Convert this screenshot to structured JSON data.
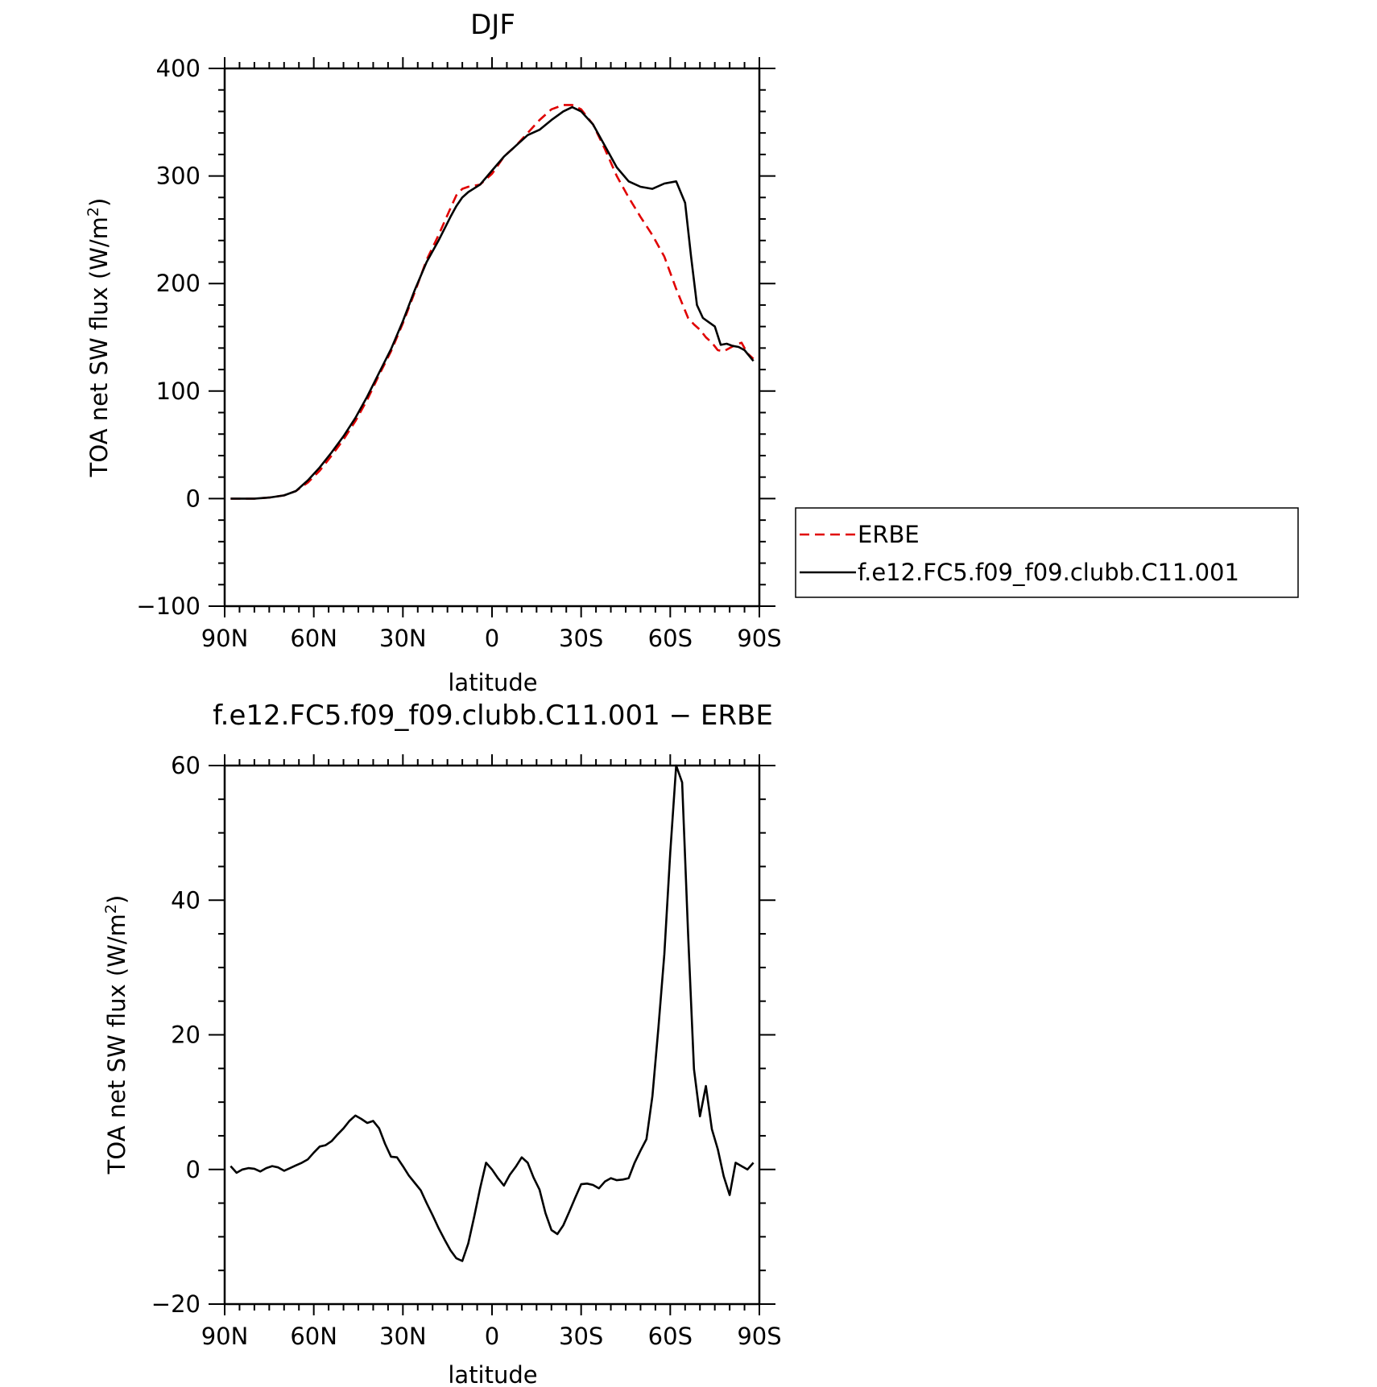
{
  "chart_data": [
    {
      "type": "line",
      "title": "DJF",
      "xlabel": "latitude",
      "ylabel": "TOA net SW flux (W/m",
      "ylabel_sup": "2",
      "ylabel_close": ")",
      "xlim": [
        90,
        -90
      ],
      "ylim": [
        -100,
        400
      ],
      "xticks": [
        90,
        60,
        30,
        0,
        -30,
        -60,
        -90
      ],
      "xtick_labels": [
        "90N",
        "60N",
        "30N",
        "0",
        "30S",
        "60S",
        "90S"
      ],
      "yticks": [
        -100,
        0,
        100,
        200,
        300,
        400
      ],
      "ytick_labels": [
        "−100",
        "0",
        "100",
        "200",
        "300",
        "400"
      ],
      "legend_position": "right",
      "series": [
        {
          "name": "ERBE",
          "color": "#e00000",
          "dash": "dashed",
          "x": [
            88,
            85,
            80,
            75,
            70,
            66,
            62,
            58,
            54,
            50,
            46,
            42,
            38,
            34,
            30,
            26,
            22,
            18,
            14,
            12,
            10,
            8,
            4,
            0,
            -4,
            -8,
            -12,
            -16,
            -20,
            -24,
            -27,
            -30,
            -34,
            -38,
            -42,
            -46,
            -50,
            -54,
            -58,
            -62,
            -66,
            -68,
            -70,
            -72,
            -74,
            -76,
            -78,
            -80,
            -82,
            -84,
            -86,
            -88
          ],
          "y": [
            0,
            0,
            0,
            1,
            3,
            7,
            15,
            26,
            40,
            55,
            72,
            92,
            115,
            137,
            163,
            192,
            222,
            245,
            270,
            282,
            288,
            290,
            292,
            302,
            318,
            328,
            340,
            352,
            362,
            366,
            366,
            362,
            348,
            325,
            300,
            280,
            262,
            245,
            225,
            195,
            168,
            162,
            157,
            150,
            145,
            138,
            137,
            140,
            143,
            145,
            135,
            130
          ]
        },
        {
          "name": "f.e12.FC5.f09_f09.clubb.C11.001",
          "color": "#000000",
          "dash": "solid",
          "x": [
            88,
            85,
            80,
            75,
            70,
            66,
            62,
            58,
            54,
            50,
            46,
            42,
            38,
            34,
            30,
            26,
            22,
            18,
            14,
            12,
            10,
            8,
            4,
            0,
            -4,
            -8,
            -12,
            -16,
            -20,
            -24,
            -27,
            -30,
            -34,
            -38,
            -42,
            -46,
            -50,
            -54,
            -58,
            -62,
            -65,
            -67,
            -69,
            -71,
            -73,
            -75,
            -77,
            -79,
            -81,
            -83,
            -85,
            -88
          ],
          "y": [
            0,
            0,
            0,
            1,
            3,
            7,
            17,
            29,
            43,
            58,
            75,
            95,
            117,
            139,
            165,
            194,
            220,
            240,
            262,
            272,
            280,
            285,
            292,
            305,
            318,
            328,
            338,
            343,
            352,
            360,
            364,
            360,
            348,
            328,
            308,
            295,
            290,
            288,
            293,
            295,
            275,
            225,
            180,
            168,
            164,
            160,
            143,
            144,
            142,
            141,
            138,
            128
          ]
        }
      ]
    },
    {
      "type": "line",
      "title": "f.e12.FC5.f09_f09.clubb.C11.001 − ERBE",
      "xlabel": "latitude",
      "ylabel": "TOA net SW flux (W/m",
      "ylabel_sup": "2",
      "ylabel_close": ")",
      "xlim": [
        90,
        -90
      ],
      "ylim": [
        -20,
        60
      ],
      "xticks": [
        90,
        60,
        30,
        0,
        -30,
        -60,
        -90
      ],
      "xtick_labels": [
        "90N",
        "60N",
        "30N",
        "0",
        "30S",
        "60S",
        "90S"
      ],
      "yticks": [
        -20,
        0,
        20,
        40,
        60
      ],
      "ytick_labels": [
        "−20",
        "0",
        "20",
        "40",
        "60"
      ],
      "series": [
        {
          "color": "#000000",
          "dash": "solid",
          "x": [
            88,
            86,
            84,
            82,
            80,
            78,
            76,
            74,
            72,
            70,
            68,
            66,
            64,
            62,
            60,
            58,
            56,
            54,
            52,
            50,
            48,
            46,
            44,
            42,
            40,
            38,
            36,
            34,
            32,
            30,
            28,
            26,
            24,
            22,
            20,
            18,
            16,
            14,
            12,
            10,
            8,
            6,
            4,
            2,
            0,
            -2,
            -4,
            -6,
            -8,
            -10,
            -12,
            -14,
            -16,
            -18,
            -20,
            -22,
            -24,
            -26,
            -28,
            -30,
            -32,
            -34,
            -36,
            -38,
            -40,
            -42,
            -44,
            -46,
            -48,
            -50,
            -52,
            -54,
            -56,
            -58,
            -60,
            -62,
            -64,
            -66,
            -68,
            -70,
            -72,
            -74,
            -76,
            -78,
            -80,
            -82,
            -84,
            -86,
            -88
          ],
          "y": [
            0.5,
            -0.5,
            0.0,
            0.2,
            0.1,
            -0.3,
            0.2,
            0.5,
            0.3,
            -0.2,
            0.2,
            0.6,
            1.0,
            1.5,
            2.5,
            3.4,
            3.6,
            4.2,
            5.2,
            6.1,
            7.2,
            8.0,
            7.5,
            6.9,
            7.2,
            6.1,
            3.8,
            1.9,
            1.8,
            0.5,
            -0.9,
            -2.0,
            -3.1,
            -5.0,
            -6.8,
            -8.7,
            -10.4,
            -12.0,
            -13.2,
            -13.6,
            -11.0,
            -7.0,
            -2.8,
            1.0,
            0.0,
            -1.3,
            -2.4,
            -0.8,
            0.4,
            1.8,
            1.0,
            -1.2,
            -3.0,
            -6.5,
            -9.0,
            -9.6,
            -8.3,
            -6.3,
            -4.2,
            -2.2,
            -2.1,
            -2.3,
            -2.8,
            -1.8,
            -1.3,
            -1.6,
            -1.5,
            -1.3,
            1.0,
            2.8,
            4.5,
            10.9,
            21.0,
            32.0,
            47.0,
            60.0,
            57.5,
            35.0,
            14.9,
            7.9,
            12.4,
            6.0,
            3.0,
            -1.0,
            -3.8,
            1.0,
            0.5,
            0.0,
            1.0
          ]
        }
      ]
    }
  ]
}
